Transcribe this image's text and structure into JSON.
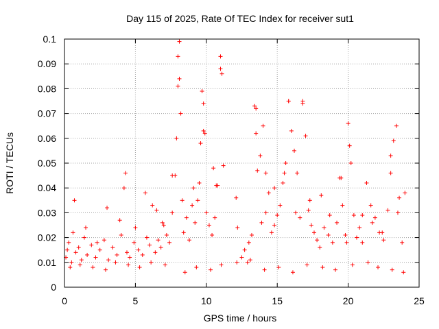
{
  "chart_data": {
    "type": "scatter",
    "title": "Day 115 of 2025, Rate Of TEC Index for receiver sut1",
    "xlabel": "GPS time / hours",
    "ylabel": "ROTI / TECUs",
    "xlim": [
      0,
      25
    ],
    "ylim": [
      0,
      0.1
    ],
    "xticks": [
      "0",
      "5",
      "10",
      "15",
      "20",
      "25"
    ],
    "yticks": [
      "0",
      "0.01",
      "0.02",
      "0.03",
      "0.04",
      "0.05",
      "0.06",
      "0.07",
      "0.08",
      "0.09",
      "0.1"
    ],
    "grid": true,
    "marker": "+",
    "color": "#ff0000",
    "series": [
      {
        "x": [
          0.1,
          0.3,
          0.5,
          0.6,
          0.8,
          1.0,
          1.2,
          1.4,
          1.6,
          1.9,
          2.2,
          2.5,
          2.8,
          3.1,
          3.4,
          3.7,
          4.0,
          4.2,
          4.4,
          4.6,
          4.9,
          5.2,
          5.5,
          5.8,
          6.0,
          6.2,
          6.4,
          6.6,
          6.8,
          7.0,
          7.2,
          7.4,
          7.6,
          7.8,
          7.9,
          8.0,
          8.1,
          8.2,
          8.3,
          8.4,
          8.6,
          8.8,
          9.0,
          9.2,
          9.4,
          9.5,
          9.6,
          9.7,
          9.8,
          9.9,
          10.0,
          10.2,
          10.4,
          10.6,
          10.8,
          11.0,
          11.1,
          11.2,
          12.1,
          12.2,
          12.5,
          12.7,
          13.0,
          13.2,
          13.4,
          13.5,
          13.6,
          13.8,
          14.0,
          14.2,
          14.4,
          14.6,
          14.8,
          15.0,
          15.2,
          15.4,
          15.6,
          15.8,
          16.0,
          16.2,
          16.4,
          16.6,
          16.8,
          17.0,
          17.2,
          17.4,
          17.6,
          17.8,
          18.0,
          18.3,
          18.6,
          18.9,
          19.2,
          19.4,
          19.6,
          19.8,
          20.0,
          20.2,
          20.4,
          20.6,
          20.8,
          21.0,
          21.3,
          21.6,
          21.9,
          22.2,
          22.5,
          22.8,
          23.0,
          23.2,
          23.4,
          23.6,
          23.8,
          24.0,
          8.0,
          8.1,
          9.8,
          11.0,
          13.5,
          15.8,
          16.8,
          20.1,
          23.0,
          4.3,
          6.5,
          7.6,
          10.7,
          14.2,
          17.3,
          19.5,
          21.7,
          0.2,
          0.7,
          1.5,
          2.3,
          3.0,
          3.9,
          5.0,
          5.7,
          6.9,
          9.1,
          10.5,
          12.9,
          13.9,
          14.8,
          15.5,
          16.3,
          18.1,
          18.7,
          19.9,
          21.0,
          22.4,
          23.5,
          0.4,
          1.1,
          2.0,
          2.9,
          3.6,
          4.5,
          5.3,
          6.1,
          7.1,
          8.5,
          9.3,
          10.3,
          11.05,
          12.15,
          13.1,
          14.1,
          15.1,
          16.1,
          17.1,
          18.2,
          19.1,
          20.3,
          21.4,
          22.1,
          23.1,
          23.9
        ],
        "y": [
          0.012,
          0.018,
          0.01,
          0.022,
          0.014,
          0.016,
          0.011,
          0.02,
          0.013,
          0.017,
          0.012,
          0.015,
          0.019,
          0.011,
          0.016,
          0.013,
          0.021,
          0.04,
          0.014,
          0.012,
          0.018,
          0.015,
          0.013,
          0.02,
          0.017,
          0.033,
          0.014,
          0.019,
          0.016,
          0.025,
          0.021,
          0.018,
          0.03,
          0.045,
          0.06,
          0.081,
          0.099,
          0.07,
          0.035,
          0.022,
          0.028,
          0.019,
          0.033,
          0.026,
          0.035,
          0.042,
          0.058,
          0.079,
          0.074,
          0.062,
          0.03,
          0.025,
          0.021,
          0.028,
          0.041,
          0.088,
          0.086,
          0.049,
          0.036,
          0.024,
          0.012,
          0.015,
          0.018,
          0.021,
          0.073,
          0.062,
          0.047,
          0.053,
          0.065,
          0.03,
          0.038,
          0.022,
          0.025,
          0.029,
          0.033,
          0.042,
          0.05,
          0.075,
          0.063,
          0.055,
          0.046,
          0.028,
          0.074,
          0.061,
          0.031,
          0.025,
          0.022,
          0.019,
          0.016,
          0.024,
          0.021,
          0.018,
          0.026,
          0.044,
          0.033,
          0.021,
          0.066,
          0.05,
          0.029,
          0.02,
          0.024,
          0.018,
          0.042,
          0.033,
          0.028,
          0.022,
          0.019,
          0.031,
          0.046,
          0.059,
          0.065,
          0.036,
          0.018,
          0.038,
          0.093,
          0.084,
          0.063,
          0.093,
          0.072,
          0.075,
          0.075,
          0.057,
          0.053,
          0.046,
          0.031,
          0.045,
          0.041,
          0.046,
          0.035,
          0.044,
          0.026,
          0.015,
          0.035,
          0.024,
          0.018,
          0.032,
          0.027,
          0.024,
          0.038,
          0.026,
          0.04,
          0.048,
          0.01,
          0.026,
          0.04,
          0.046,
          0.03,
          0.037,
          0.029,
          0.018,
          0.029,
          0.022,
          0.03,
          0.008,
          0.009,
          0.008,
          0.007,
          0.01,
          0.009,
          0.008,
          0.01,
          0.009,
          0.006,
          0.008,
          0.007,
          0.009,
          0.01,
          0.011,
          0.007,
          0.008,
          0.006,
          0.009,
          0.008,
          0.007,
          0.009,
          0.01,
          0.008,
          0.007,
          0.006
        ]
      }
    ]
  }
}
